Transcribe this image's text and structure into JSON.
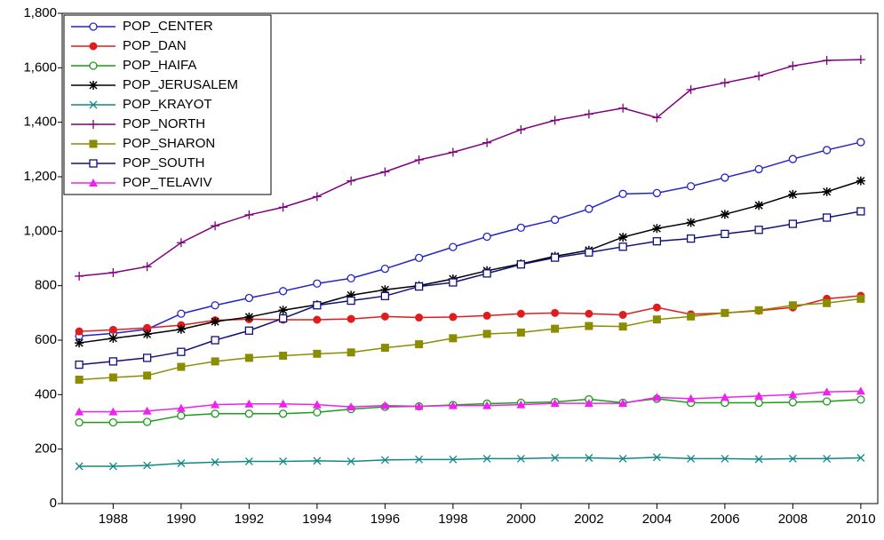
{
  "chart_data": {
    "type": "line",
    "x": [
      1987,
      1988,
      1989,
      1990,
      1991,
      1992,
      1993,
      1994,
      1995,
      1996,
      1997,
      1998,
      1999,
      2000,
      2001,
      2002,
      2003,
      2004,
      2005,
      2006,
      2007,
      2008,
      2009,
      2010
    ],
    "xlim": [
      1986.5,
      2010.5
    ],
    "xticks": [
      1988,
      1990,
      1992,
      1994,
      1996,
      1998,
      2000,
      2002,
      2004,
      2006,
      2008,
      2010
    ],
    "ylim": [
      0,
      1800
    ],
    "yticks": [
      0,
      200,
      400,
      600,
      800,
      {
        "value": 1000,
        "label": "1,000"
      },
      {
        "value": 1200,
        "label": "1,200"
      },
      {
        "value": 1400,
        "label": "1,400"
      },
      {
        "value": 1600,
        "label": "1,600"
      },
      {
        "value": 1800,
        "label": "1,800"
      }
    ],
    "grid": false,
    "legend": "top-left",
    "series": [
      {
        "name": "POP_CENTER",
        "color": "#2424c8",
        "marker": "circle",
        "values": [
          615,
          625,
          640,
          697,
          728,
          755,
          780,
          808,
          827,
          862,
          902,
          942,
          980,
          1013,
          1042,
          1082,
          1137,
          1140,
          1165,
          1197,
          1228,
          1265,
          1298,
          1327
        ]
      },
      {
        "name": "POP_DAN",
        "color": "#e01c1c",
        "marker": "filled-circle",
        "values": [
          632,
          638,
          645,
          655,
          673,
          677,
          675,
          675,
          678,
          687,
          683,
          685,
          690,
          697,
          700,
          697,
          693,
          720,
          695,
          700,
          708,
          720,
          752,
          763
        ]
      },
      {
        "name": "POP_HAIFA",
        "color": "#1c9c1c",
        "marker": "circle",
        "values": [
          298,
          298,
          300,
          323,
          330,
          330,
          330,
          335,
          347,
          355,
          357,
          362,
          367,
          370,
          373,
          383,
          370,
          385,
          370,
          370,
          370,
          372,
          375,
          382
        ]
      },
      {
        "name": "POP_JERUSALEM",
        "color": "#000000",
        "marker": "star",
        "values": [
          590,
          607,
          622,
          640,
          668,
          685,
          710,
          730,
          765,
          785,
          800,
          825,
          855,
          880,
          908,
          930,
          978,
          1010,
          1032,
          1062,
          1095,
          1135,
          1145,
          1185
        ]
      },
      {
        "name": "POP_KRAYOT",
        "color": "#108888",
        "marker": "x",
        "values": [
          137,
          137,
          140,
          148,
          152,
          155,
          155,
          157,
          155,
          160,
          162,
          162,
          165,
          165,
          168,
          168,
          165,
          170,
          165,
          165,
          163,
          165,
          165,
          168
        ]
      },
      {
        "name": "POP_NORTH",
        "color": "#800080",
        "marker": "plus",
        "values": [
          835,
          848,
          870,
          958,
          1020,
          1060,
          1088,
          1127,
          1185,
          1218,
          1262,
          1290,
          1325,
          1373,
          1407,
          1430,
          1452,
          1417,
          1520,
          1545,
          1570,
          1607,
          1627,
          1630
        ]
      },
      {
        "name": "POP_SHARON",
        "color": "#8c8c00",
        "marker": "filled-square",
        "values": [
          455,
          463,
          470,
          502,
          522,
          535,
          543,
          550,
          555,
          572,
          585,
          607,
          623,
          628,
          642,
          652,
          650,
          676,
          687,
          700,
          710,
          728,
          736,
          752
        ]
      },
      {
        "name": "POP_SOUTH",
        "color": "#10107c",
        "marker": "square",
        "values": [
          510,
          522,
          535,
          557,
          600,
          635,
          680,
          728,
          745,
          762,
          797,
          812,
          845,
          878,
          903,
          922,
          943,
          963,
          973,
          990,
          1005,
          1027,
          1050,
          1073
        ]
      },
      {
        "name": "POP_TELAVIV",
        "color": "#f020f0",
        "marker": "triangle",
        "values": [
          337,
          337,
          340,
          350,
          363,
          366,
          366,
          363,
          355,
          360,
          357,
          360,
          360,
          363,
          368,
          368,
          368,
          390,
          385,
          390,
          395,
          400,
          410,
          413
        ]
      }
    ]
  }
}
